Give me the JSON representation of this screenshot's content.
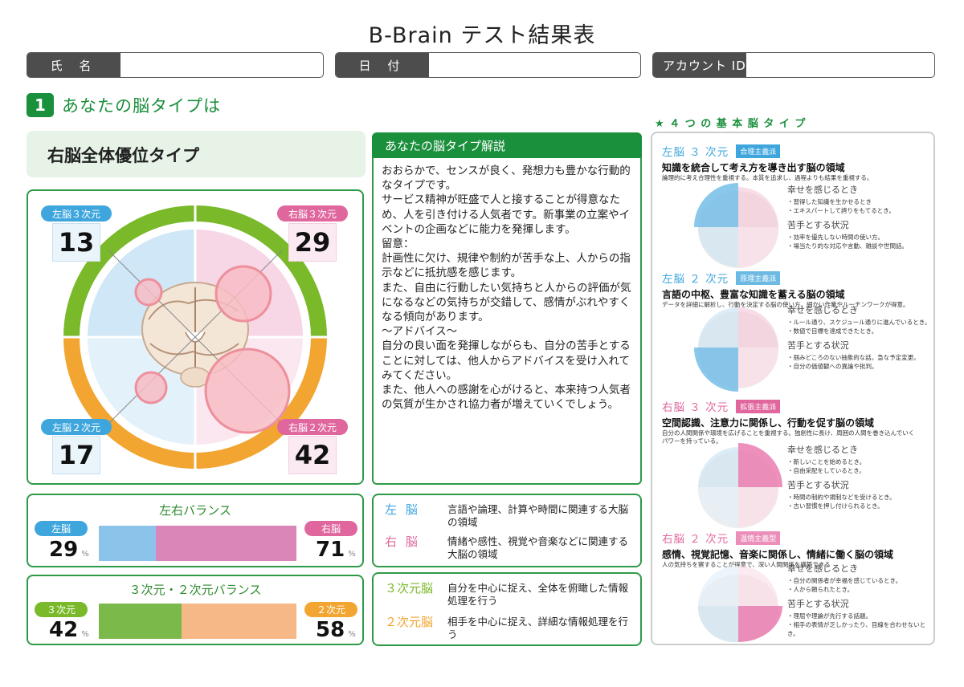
{
  "title": "B-Brain テスト結果表",
  "fields": {
    "name_label": "氏 名",
    "date_label": "日 付",
    "account_label": "アカウント ID"
  },
  "section1": {
    "number": "1",
    "title": "あなたの脳タイプは",
    "type_name": "右脳全体優位タイプ"
  },
  "scores": {
    "left3": {
      "label": "左脳３次元",
      "value": "13"
    },
    "right3": {
      "label": "右脳３次元",
      "value": "29"
    },
    "left2": {
      "label": "左脳２次元",
      "value": "17"
    },
    "right2": {
      "label": "右脳２次元",
      "value": "42"
    }
  },
  "description": {
    "heading": "あなたの脳タイプ解説",
    "body": "おおらかで、センスが良く、発想力も豊かな行動的なタイプです。\nサービス精神が旺盛で人と接することが得意なため、人を引き付ける人気者です。新事業の立案やイベントの企画などに能力を発揮します。\n留意：\n計画性に欠け、規律や制約が苦手な上、人からの指示などに抵抗感を感じます。\nまた、自由に行動したい気持ちと人からの評価が気になるなどの気持ちが交錯して、感情がぶれやすくなる傾向があります。\n～アドバイス～\n自分の良い面を発揮しながらも、自分の苦手とすることに対しては、他人からアドバイスを受け入れてみてください。\nまた、他人への感謝を心がけると、本来持つ人気者の気質が生かされ協力者が増えていくでしょう。"
  },
  "lr_balance": {
    "title": "左右バランス",
    "left_label": "左脳",
    "left_value": "29",
    "left_fraction": 0.29,
    "right_label": "右脳",
    "right_value": "71",
    "right_fraction": 0.71,
    "unit": "%"
  },
  "dim_balance": {
    "title": "３次元・２次元バランス",
    "a_label": "３次元",
    "a_value": "42",
    "a_fraction": 0.42,
    "b_label": "２次元",
    "b_value": "58",
    "b_fraction": 0.58,
    "unit": "%"
  },
  "lr_defs": [
    {
      "key": "左 脳",
      "text": "言語や論理、計算や時間に関連する大脳の領域"
    },
    {
      "key": "右 脳",
      "text": "情緒や感性、視覚や音楽などに関連する大脳の領域"
    }
  ],
  "dim_defs": [
    {
      "key": "３次元脳",
      "text": "自分を中心に捉え、全体を俯瞰した情報処理を行う"
    },
    {
      "key": "２次元脳",
      "text": "相手を中心に捉え、詳細な情報処理を行う"
    }
  ],
  "basic_types": {
    "heading": "★ ４ つ の 基 本 脳 タ イ プ",
    "happy_label": "幸せを感じるとき",
    "weak_label": "苦手とする状況",
    "items": [
      {
        "name": "左脳 ３ 次元",
        "tag": "合理主義派",
        "head": "知識を統合して考え方を導き出す脳の領域",
        "sub": "論理的に考え合理性を重視する。本質を追求し、過程よりも結果を重視する。",
        "happy": [
          "・習得した知識を生かせるとき",
          "・エキスパートして誇りをもてるとき。"
        ],
        "weak": [
          "・効率を優先しない時間の使い方。",
          "・場当たり的な対応や言動、雑談や世間話。"
        ]
      },
      {
        "name": "左脳 ２ 次元",
        "tag": "原理主義派",
        "head": "言語の中枢、豊富な知識を蓄える脳の領域",
        "sub": "データを詳細に解析し、行動を決定する脳の使い方。細かい作業やルーチンワークが得意。",
        "happy": [
          "・ルール通り、スケジュール通りに進んでいるとき。",
          "・数値で目標を達成できたとき。"
        ],
        "weak": [
          "・掴みどころのない抽象的な話。急な予定変更。",
          "・自分の価値観への異論や批判。"
        ]
      },
      {
        "name": "右脳 ３ 次元",
        "tag": "拡張主義派",
        "head": "空間認識、注意力に関係し、行動を促す脳の領域",
        "sub": "自分の人間関係や環境を広げることを重視する。独創性に長け、周囲の人間を巻き込んでいくパワーを持っている。",
        "happy": [
          "・新しいことを始めるとき。",
          "・自由采配をしているとき。"
        ],
        "weak": [
          "・時間の制約や規制などを受けるとき。",
          "・古い習慣を押し付けられるとき。"
        ]
      },
      {
        "name": "右脳 ２ 次元",
        "tag": "温情主義型",
        "head": "感情、視覚記憶、音楽に関係し、情緒に働く脳の領域",
        "sub": "人の気持ちを察することが得意で、深い人間関係を構築できる",
        "happy": [
          "・自分の関係者が幸福を感じているとき。",
          "・人から頼られたとき。"
        ],
        "weak": [
          "・理屈や理論が先行する話題。",
          "・相手の表情が乏しかったり、目線を合わせないとき。"
        ]
      }
    ]
  },
  "colors": {
    "green": "#1a8f3c",
    "left_blue": "#3ea6dd",
    "right_pink": "#e0679d",
    "three_d_green": "#7ab929",
    "two_d_orange": "#f2a531"
  }
}
